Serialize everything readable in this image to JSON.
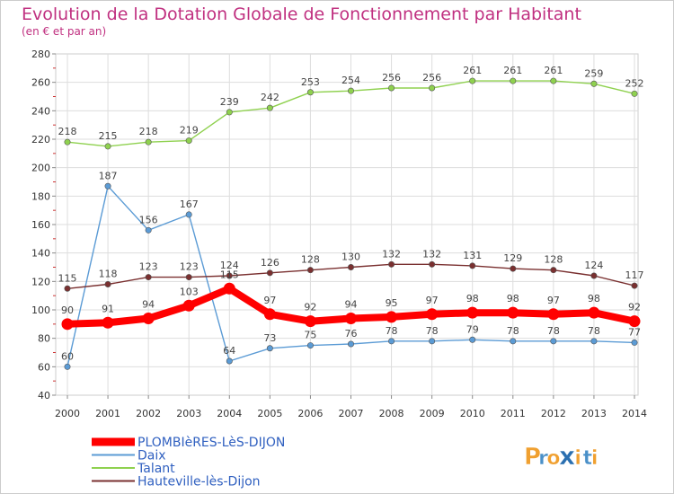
{
  "header": {
    "title": "Evolution de la Dotation Globale de Fonctionnement par Habitant",
    "subtitle": "(en € et par an)"
  },
  "logo": {
    "text": "Proxiti",
    "letters": [
      "P",
      "r",
      "o",
      "x",
      "i",
      "t",
      "i"
    ],
    "colors": [
      "#f0a030",
      "#4a90c8",
      "#f0a030",
      "#2a6fb0",
      "#f0a030",
      "#4a90c8",
      "#f0a030"
    ]
  },
  "chart_data": {
    "type": "line",
    "title": "Evolution de la Dotation Globale de Fonctionnement par Habitant",
    "subtitle": "(en € et par an)",
    "xlabel": "",
    "ylabel": "",
    "x": [
      "2000",
      "2001",
      "2002",
      "2003",
      "2004",
      "2005",
      "2006",
      "2007",
      "2008",
      "2009",
      "2010",
      "2011",
      "2012",
      "2013",
      "2014"
    ],
    "ylim": [
      40,
      280
    ],
    "yticks": [
      "40",
      "60",
      "80",
      "100",
      "120",
      "140",
      "160",
      "180",
      "200",
      "220",
      "240",
      "260",
      "280"
    ],
    "grid": true,
    "legend_position": "bottom-left",
    "series": [
      {
        "name": "PLOMBIèRES-LèS-DIJON",
        "color": "#ff0000",
        "emphasis": true,
        "values": [
          90,
          91,
          94,
          103,
          115,
          97,
          92,
          94,
          95,
          97,
          98,
          98,
          97,
          98,
          92
        ],
        "labels": [
          "90",
          "91",
          "94",
          "103",
          "115",
          "97",
          "92",
          "94",
          "95",
          "97",
          "98",
          "98",
          "97",
          "98",
          "92"
        ]
      },
      {
        "name": "Daix",
        "color": "#5b9bd5",
        "emphasis": false,
        "values": [
          60,
          187,
          156,
          167,
          64,
          73,
          75,
          76,
          78,
          78,
          79,
          78,
          78,
          78,
          77
        ],
        "labels": [
          "60",
          "187",
          "156",
          "167",
          "64",
          "73",
          "75",
          "76",
          "78",
          "78",
          "79",
          "78",
          "78",
          "78",
          "77"
        ]
      },
      {
        "name": "Talant",
        "color": "#8fd14f",
        "emphasis": false,
        "values": [
          218,
          215,
          218,
          219,
          239,
          242,
          253,
          254,
          256,
          256,
          261,
          261,
          261,
          259,
          252
        ],
        "labels": [
          "218",
          "215",
          "218",
          "219",
          "239",
          "242",
          "253",
          "254",
          "256",
          "256",
          "261",
          "261",
          "261",
          "259",
          "252"
        ]
      },
      {
        "name": "Hauteville-lès-Dijon",
        "color": "#7a3030",
        "emphasis": false,
        "values": [
          115,
          118,
          123,
          123,
          124,
          126,
          128,
          130,
          132,
          132,
          131,
          129,
          128,
          124,
          117
        ],
        "labels": [
          "115",
          "118",
          "123",
          "123",
          "124",
          "126",
          "128",
          "130",
          "132",
          "132",
          "131",
          "129",
          "128",
          "124",
          "117"
        ]
      }
    ]
  },
  "colors": {
    "title": "#c03080",
    "subtitle": "#c03080",
    "legend_text": "#3060c0",
    "frame": "#cccccc",
    "grid": "#dddddd"
  }
}
